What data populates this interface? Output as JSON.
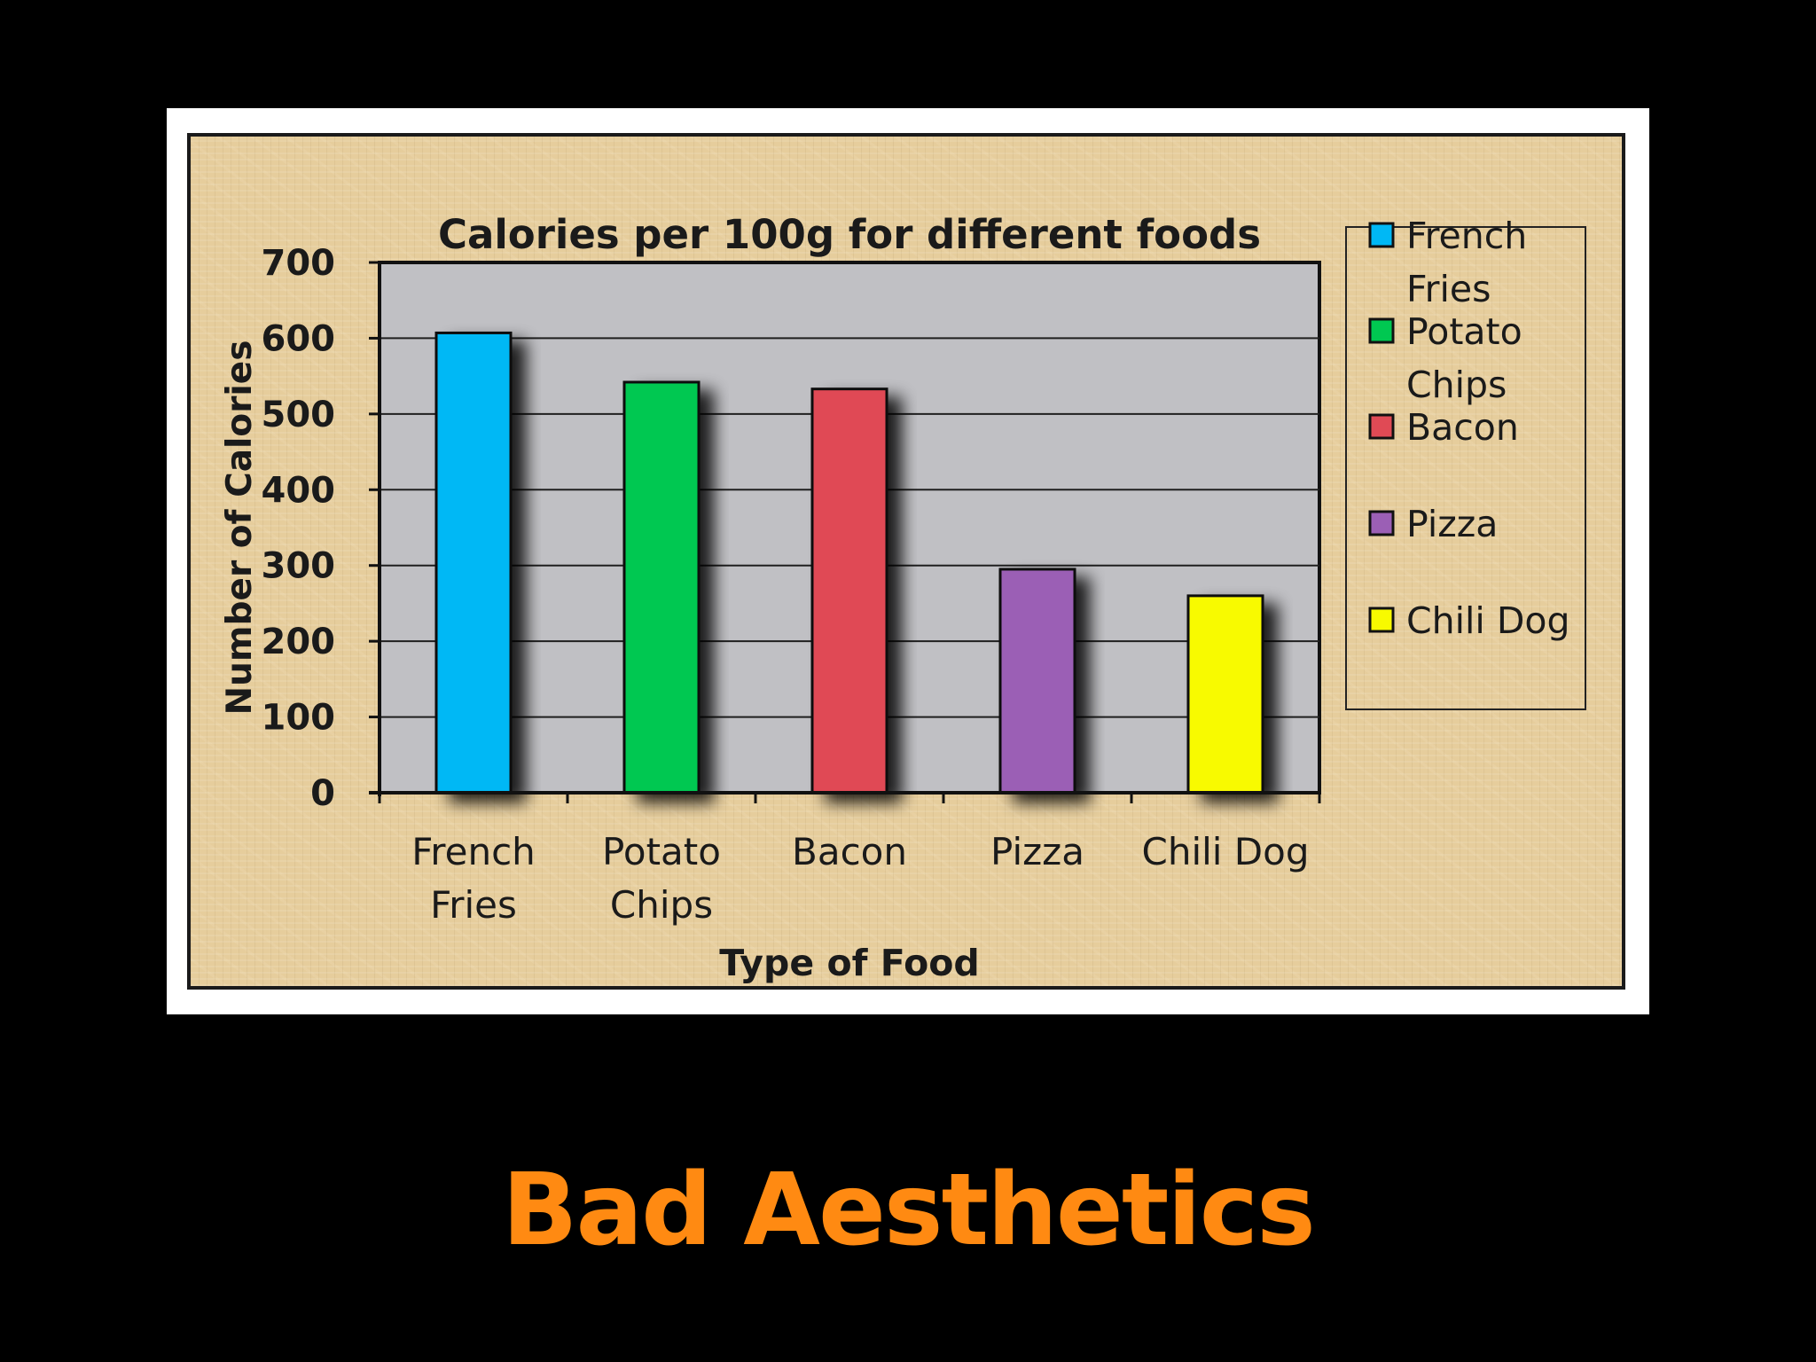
{
  "colors": {
    "plot_background": "#c0c0c4",
    "caption": "#ff8a12",
    "text": "#1a1a1a"
  },
  "chart_data": {
    "type": "bar",
    "title": "Calories per 100g for different foods",
    "xlabel": "Type of Food",
    "ylabel": "Number of Calories",
    "ylim": [
      0,
      700
    ],
    "yticks": [
      0,
      100,
      200,
      300,
      400,
      500,
      600,
      700
    ],
    "categories": [
      {
        "label": [
          "French",
          "Fries"
        ],
        "value": 607,
        "color": "#00b8f5"
      },
      {
        "label": [
          "Potato",
          "Chips"
        ],
        "value": 542,
        "color": "#00c851"
      },
      {
        "label": [
          "Bacon"
        ],
        "value": 533,
        "color": "#e04a55"
      },
      {
        "label": [
          "Pizza"
        ],
        "value": 295,
        "color": "#9b5fb5"
      },
      {
        "label": [
          "Chili Dog"
        ],
        "value": 260,
        "color": "#f8fa00"
      }
    ],
    "legend": [
      {
        "label": [
          "French",
          "Fries"
        ],
        "color": "#00b8f5"
      },
      {
        "label": [
          "Potato",
          "Chips"
        ],
        "color": "#00c851"
      },
      {
        "label": [
          "Bacon"
        ],
        "color": "#e04a55"
      },
      {
        "label": [
          "Pizza"
        ],
        "color": "#9b5fb5"
      },
      {
        "label": [
          "Chili Dog"
        ],
        "color": "#f8fa00"
      }
    ],
    "legend_position": "right",
    "grid": true
  },
  "caption": "Bad Aesthetics"
}
